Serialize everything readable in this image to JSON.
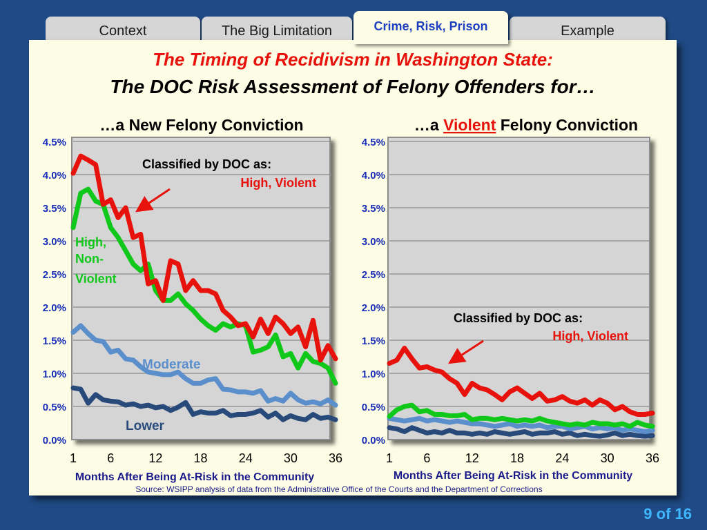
{
  "tabs": [
    {
      "label": "Context",
      "active": false
    },
    {
      "label": "The Big Limitation",
      "active": false
    },
    {
      "label": "Crime, Risk, Prison",
      "active": true
    },
    {
      "label": "Example",
      "active": false
    }
  ],
  "slide": {
    "title_line1": "The Timing of Recidivism in Washington State:",
    "title_line2": "The DOC Risk Assessment of Felony Offenders for…",
    "source": "Source: WSIPP analysis of data from the Administrative Office of the Courts and the Department of Corrections",
    "page_indicator": "9 of 16"
  },
  "colors": {
    "high_violent": "#e8120c",
    "high_nonviolent": "#10c81a",
    "moderate": "#5b8fcc",
    "lower": "#274a7a",
    "axis_text": "#1a2fb8",
    "page_indicator": "#3fb7ff"
  },
  "chart_data": [
    {
      "type": "line",
      "title": "…a New Felony Conviction",
      "xlabel": "Months After Being At-Risk in the Community",
      "ylabel": "",
      "ylim": [
        0,
        4.5
      ],
      "xlim": [
        1,
        36
      ],
      "x_ticks": [
        1,
        6,
        12,
        18,
        24,
        30,
        36
      ],
      "y_ticks": [
        "0.0%",
        "0.5%",
        "1.0%",
        "1.5%",
        "2.0%",
        "2.5%",
        "3.0%",
        "3.5%",
        "4.0%",
        "4.5%"
      ],
      "grid": true,
      "x": [
        1,
        2,
        3,
        4,
        5,
        6,
        7,
        8,
        9,
        10,
        11,
        12,
        13,
        14,
        15,
        16,
        17,
        18,
        19,
        20,
        21,
        22,
        23,
        24,
        25,
        26,
        27,
        28,
        29,
        30,
        31,
        32,
        33,
        34,
        35,
        36
      ],
      "annotations": [
        {
          "text": "Classified by DOC as:"
        },
        {
          "text": "High, Violent"
        }
      ],
      "series": [
        {
          "name": "High, Violent",
          "label": "",
          "values": [
            4.02,
            4.28,
            4.22,
            4.15,
            3.55,
            3.62,
            3.35,
            3.5,
            3.05,
            3.1,
            2.35,
            2.4,
            2.1,
            2.7,
            2.65,
            2.25,
            2.4,
            2.25,
            2.25,
            2.2,
            1.95,
            1.85,
            1.72,
            1.75,
            1.55,
            1.82,
            1.6,
            1.85,
            1.75,
            1.6,
            1.7,
            1.4,
            1.8,
            1.2,
            1.42,
            1.22
          ]
        },
        {
          "name": "High, Non-Violent",
          "label": "High, Non-Violent",
          "values": [
            3.2,
            3.72,
            3.78,
            3.6,
            3.55,
            3.2,
            3.05,
            2.85,
            2.65,
            2.55,
            2.65,
            2.25,
            2.1,
            2.1,
            2.2,
            2.05,
            1.95,
            1.82,
            1.72,
            1.65,
            1.75,
            1.7,
            1.75,
            1.72,
            1.32,
            1.35,
            1.4,
            1.58,
            1.25,
            1.3,
            1.08,
            1.3,
            1.18,
            1.15,
            1.08,
            0.85
          ]
        },
        {
          "name": "Moderate",
          "label": "Moderate",
          "values": [
            1.62,
            1.72,
            1.6,
            1.5,
            1.48,
            1.32,
            1.35,
            1.22,
            1.2,
            1.1,
            1.02,
            1.0,
            0.98,
            0.98,
            1.02,
            0.92,
            0.85,
            0.85,
            0.9,
            0.92,
            0.76,
            0.75,
            0.72,
            0.72,
            0.7,
            0.74,
            0.58,
            0.62,
            0.58,
            0.7,
            0.6,
            0.55,
            0.57,
            0.54,
            0.6,
            0.52
          ]
        },
        {
          "name": "Lower",
          "label": "Lower",
          "values": [
            0.78,
            0.76,
            0.55,
            0.68,
            0.6,
            0.58,
            0.57,
            0.52,
            0.54,
            0.5,
            0.52,
            0.48,
            0.5,
            0.44,
            0.49,
            0.56,
            0.38,
            0.42,
            0.4,
            0.4,
            0.44,
            0.36,
            0.38,
            0.38,
            0.4,
            0.44,
            0.34,
            0.4,
            0.3,
            0.36,
            0.32,
            0.3,
            0.38,
            0.32,
            0.34,
            0.3
          ]
        }
      ]
    },
    {
      "type": "line",
      "title_parts": [
        "…a ",
        "Violent",
        " Felony Conviction"
      ],
      "xlabel": "Months After Being At-Risk in the Community",
      "ylabel": "",
      "ylim": [
        0,
        4.5
      ],
      "xlim": [
        1,
        36
      ],
      "x_ticks": [
        1,
        6,
        12,
        18,
        24,
        30,
        36
      ],
      "y_ticks": [
        "0.0%",
        "0.5%",
        "1.0%",
        "1.5%",
        "2.0%",
        "2.5%",
        "3.0%",
        "3.5%",
        "4.0%",
        "4.5%"
      ],
      "grid": true,
      "x": [
        1,
        2,
        3,
        4,
        5,
        6,
        7,
        8,
        9,
        10,
        11,
        12,
        13,
        14,
        15,
        16,
        17,
        18,
        19,
        20,
        21,
        22,
        23,
        24,
        25,
        26,
        27,
        28,
        29,
        30,
        31,
        32,
        33,
        34,
        35,
        36
      ],
      "annotations": [
        {
          "text": "Classified by DOC as:"
        },
        {
          "text": "High, Violent"
        }
      ],
      "series": [
        {
          "name": "High, Violent",
          "values": [
            1.15,
            1.2,
            1.38,
            1.22,
            1.08,
            1.1,
            1.05,
            1.02,
            0.92,
            0.85,
            0.68,
            0.85,
            0.78,
            0.75,
            0.68,
            0.6,
            0.72,
            0.78,
            0.7,
            0.62,
            0.7,
            0.58,
            0.6,
            0.65,
            0.58,
            0.55,
            0.6,
            0.52,
            0.6,
            0.55,
            0.45,
            0.5,
            0.42,
            0.38,
            0.38,
            0.4
          ]
        },
        {
          "name": "High, Non-Violent",
          "values": [
            0.35,
            0.45,
            0.5,
            0.52,
            0.42,
            0.44,
            0.38,
            0.38,
            0.36,
            0.36,
            0.38,
            0.3,
            0.32,
            0.32,
            0.3,
            0.32,
            0.3,
            0.28,
            0.3,
            0.28,
            0.32,
            0.28,
            0.26,
            0.24,
            0.22,
            0.24,
            0.22,
            0.26,
            0.24,
            0.24,
            0.22,
            0.24,
            0.2,
            0.26,
            0.22,
            0.2
          ]
        },
        {
          "name": "Moderate",
          "values": [
            0.32,
            0.3,
            0.28,
            0.3,
            0.32,
            0.28,
            0.3,
            0.28,
            0.26,
            0.28,
            0.26,
            0.24,
            0.24,
            0.22,
            0.2,
            0.22,
            0.24,
            0.2,
            0.22,
            0.2,
            0.22,
            0.18,
            0.2,
            0.2,
            0.16,
            0.18,
            0.2,
            0.16,
            0.18,
            0.16,
            0.18,
            0.14,
            0.16,
            0.14,
            0.12,
            0.14
          ]
        },
        {
          "name": "Lower",
          "values": [
            0.18,
            0.16,
            0.12,
            0.18,
            0.14,
            0.1,
            0.12,
            0.1,
            0.14,
            0.1,
            0.1,
            0.08,
            0.1,
            0.08,
            0.12,
            0.1,
            0.08,
            0.1,
            0.12,
            0.08,
            0.1,
            0.1,
            0.12,
            0.08,
            0.1,
            0.06,
            0.08,
            0.06,
            0.05,
            0.07,
            0.1,
            0.06,
            0.08,
            0.06,
            0.05,
            0.06
          ]
        }
      ]
    }
  ]
}
